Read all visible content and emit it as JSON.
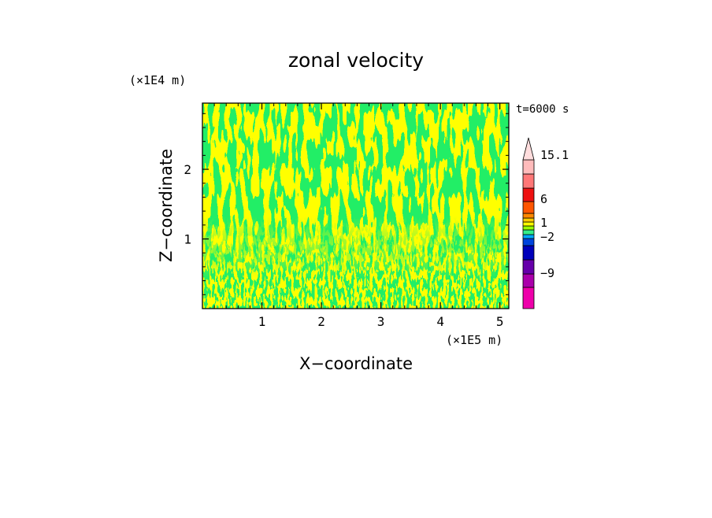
{
  "chart_data": {
    "type": "heatmap",
    "title": "zonal velocity",
    "xlabel": "X−coordinate",
    "ylabel": "Z−coordinate",
    "x_scale_label": "(×1E5 m)",
    "y_scale_label": "(×1E4 m)",
    "time_label": "t=6000 s",
    "xlim": [
      0,
      5.15
    ],
    "ylim": [
      0,
      2.95
    ],
    "x_ticks": [
      {
        "value": 1,
        "label": "1"
      },
      {
        "value": 2,
        "label": "2"
      },
      {
        "value": 3,
        "label": "3"
      },
      {
        "value": 4,
        "label": "4"
      },
      {
        "value": 5,
        "label": "5"
      }
    ],
    "y_ticks": [
      {
        "value": 1,
        "label": "1"
      },
      {
        "value": 2,
        "label": "2"
      }
    ],
    "field_colors": {
      "positive": "#ffff00",
      "negative": "#22ee66"
    },
    "colorbar": {
      "levels": [
        {
          "color": "#ee00aa"
        },
        {
          "color": "#aa00aa"
        },
        {
          "color": "#6600aa"
        },
        {
          "color": "#0000bb"
        },
        {
          "color": "#0044dd"
        },
        {
          "color": "#00aaff"
        },
        {
          "color": "#33ee88"
        },
        {
          "color": "#99ff00"
        },
        {
          "color": "#ffff00"
        },
        {
          "color": "#ffcc00"
        },
        {
          "color": "#ff8800"
        },
        {
          "color": "#ff5500"
        },
        {
          "color": "#ee1111"
        },
        {
          "color": "#ff7777"
        },
        {
          "color": "#ffbbbb"
        }
      ],
      "labels": [
        {
          "label": "15.1"
        },
        {
          "label": "6"
        },
        {
          "label": "1"
        },
        {
          "label": "−2"
        },
        {
          "label": "−9"
        }
      ],
      "extension_color": "#ffdddd"
    }
  }
}
